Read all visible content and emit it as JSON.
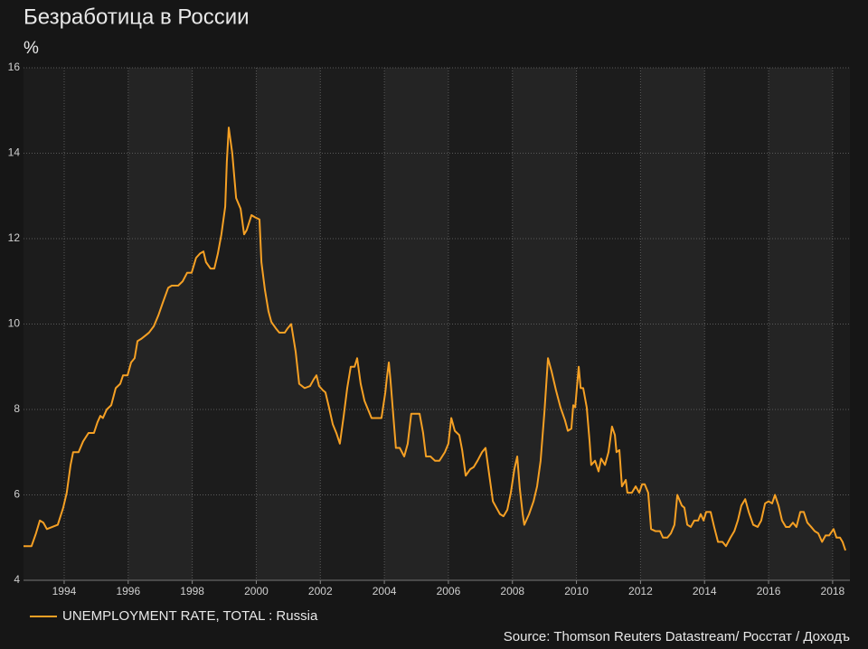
{
  "chart_data": {
    "type": "line",
    "title": "Безработица в России",
    "y_label": "%",
    "source": "Source: Thomson Reuters Datastream/ Росстат / Доходъ",
    "xlim": [
      1992.73,
      2018.54
    ],
    "ylim": [
      4,
      16
    ],
    "xticks": [
      1994,
      1996,
      1998,
      2000,
      2002,
      2004,
      2006,
      2008,
      2010,
      2012,
      2014,
      2016,
      2018
    ],
    "yticks": [
      4,
      6,
      8,
      10,
      12,
      14,
      16
    ],
    "grid": true,
    "legend": "bottom-left",
    "x": [
      1992.73,
      1992.98,
      1993.12,
      1993.24,
      1993.35,
      1993.46,
      1993.63,
      1993.8,
      1993.97,
      1994.08,
      1994.2,
      1994.28,
      1994.45,
      1994.59,
      1994.76,
      1994.93,
      1995.04,
      1995.13,
      1995.21,
      1995.33,
      1995.47,
      1995.61,
      1995.75,
      1995.84,
      1995.98,
      1996.09,
      1996.2,
      1996.29,
      1996.4,
      1996.57,
      1996.65,
      1996.8,
      1996.94,
      1997.08,
      1997.25,
      1997.36,
      1997.56,
      1997.7,
      1997.84,
      1997.98,
      1998.12,
      1998.24,
      1998.35,
      1998.43,
      1998.57,
      1998.69,
      1998.8,
      1998.91,
      1999.03,
      1999.08,
      1999.11,
      1999.14,
      1999.25,
      1999.37,
      1999.51,
      1999.62,
      1999.7,
      1999.85,
      1999.96,
      2000.1,
      2000.16,
      2000.27,
      2000.38,
      2000.47,
      2000.61,
      2000.72,
      2000.89,
      2000.98,
      2001.09,
      2001.23,
      2001.34,
      2001.51,
      2001.68,
      2001.79,
      2001.88,
      2001.96,
      2002.08,
      2002.16,
      2002.27,
      2002.39,
      2002.5,
      2002.61,
      2002.73,
      2002.84,
      2002.95,
      2003.07,
      2003.15,
      2003.26,
      2003.38,
      2003.49,
      2003.6,
      2003.77,
      2003.91,
      2004.03,
      2004.08,
      2004.14,
      2004.19,
      2004.28,
      2004.36,
      2004.48,
      2004.62,
      2004.73,
      2004.84,
      2005.1,
      2005.21,
      2005.3,
      2005.44,
      2005.58,
      2005.72,
      2005.89,
      2006.0,
      2006.09,
      2006.2,
      2006.34,
      2006.43,
      2006.54,
      2006.68,
      2006.79,
      2006.91,
      2007.05,
      2007.16,
      2007.27,
      2007.39,
      2007.5,
      2007.61,
      2007.72,
      2007.84,
      2007.95,
      2008.06,
      2008.15,
      2008.23,
      2008.32,
      2008.37,
      2008.52,
      2008.66,
      2008.77,
      2008.88,
      2009.0,
      2009.11,
      2009.22,
      2009.36,
      2009.5,
      2009.64,
      2009.73,
      2009.84,
      2009.9,
      2009.96,
      2010.07,
      2010.13,
      2010.21,
      2010.32,
      2010.41,
      2010.46,
      2010.58,
      2010.69,
      2010.77,
      2010.89,
      2011.0,
      2011.11,
      2011.2,
      2011.25,
      2011.34,
      2011.42,
      2011.54,
      2011.59,
      2011.73,
      2011.85,
      2011.96,
      2012.05,
      2012.13,
      2012.24,
      2012.33,
      2012.47,
      2012.61,
      2012.7,
      2012.84,
      2012.95,
      2013.06,
      2013.15,
      2013.29,
      2013.37,
      2013.46,
      2013.57,
      2013.68,
      2013.8,
      2013.88,
      2013.97,
      2014.05,
      2014.19,
      2014.3,
      2014.42,
      2014.56,
      2014.67,
      2014.81,
      2014.93,
      2015.04,
      2015.15,
      2015.27,
      2015.38,
      2015.52,
      2015.66,
      2015.77,
      2015.89,
      2016.0,
      2016.11,
      2016.2,
      2016.31,
      2016.42,
      2016.54,
      2016.65,
      2016.76,
      2016.87,
      2016.99,
      2017.1,
      2017.21,
      2017.33,
      2017.44,
      2017.55,
      2017.67,
      2017.78,
      2017.89,
      2018.03,
      2018.12,
      2018.23,
      2018.31,
      2018.4
    ],
    "series": [
      {
        "name": "UNEMPLOYMENT RATE, TOTAL : Russia",
        "color": "#f5a024",
        "values": [
          4.8,
          4.8,
          5.1,
          5.4,
          5.35,
          5.2,
          5.25,
          5.3,
          5.7,
          6.05,
          6.7,
          7.0,
          7.0,
          7.25,
          7.45,
          7.45,
          7.7,
          7.85,
          7.8,
          8.0,
          8.1,
          8.5,
          8.6,
          8.8,
          8.8,
          9.1,
          9.2,
          9.6,
          9.65,
          9.75,
          9.8,
          9.95,
          10.2,
          10.5,
          10.85,
          10.9,
          10.9,
          11.0,
          11.2,
          11.2,
          11.55,
          11.65,
          11.7,
          11.45,
          11.3,
          11.3,
          11.65,
          12.1,
          12.75,
          13.8,
          14.2,
          14.6,
          14.0,
          12.95,
          12.7,
          12.1,
          12.2,
          12.55,
          12.5,
          12.45,
          11.45,
          10.8,
          10.3,
          10.05,
          9.9,
          9.8,
          9.8,
          9.9,
          10.0,
          9.35,
          8.6,
          8.5,
          8.55,
          8.7,
          8.8,
          8.55,
          8.45,
          8.4,
          8.05,
          7.65,
          7.45,
          7.2,
          7.85,
          8.5,
          9.0,
          9.0,
          9.2,
          8.6,
          8.2,
          8.0,
          7.8,
          7.8,
          7.8,
          8.4,
          8.75,
          9.1,
          8.7,
          7.85,
          7.1,
          7.1,
          6.9,
          7.2,
          7.9,
          7.9,
          7.45,
          6.9,
          6.9,
          6.8,
          6.8,
          7.0,
          7.2,
          7.8,
          7.5,
          7.4,
          7.05,
          6.45,
          6.6,
          6.65,
          6.8,
          7.0,
          7.1,
          6.5,
          5.85,
          5.7,
          5.55,
          5.5,
          5.65,
          6.05,
          6.6,
          6.9,
          6.15,
          5.55,
          5.3,
          5.55,
          5.85,
          6.2,
          6.8,
          7.95,
          9.2,
          8.9,
          8.45,
          8.05,
          7.75,
          7.5,
          7.55,
          8.1,
          8.05,
          9.0,
          8.5,
          8.5,
          8.05,
          7.25,
          6.7,
          6.8,
          6.55,
          6.85,
          6.7,
          7.0,
          7.6,
          7.4,
          7.0,
          7.05,
          6.2,
          6.35,
          6.05,
          6.05,
          6.2,
          6.05,
          6.25,
          6.25,
          6.05,
          5.2,
          5.15,
          5.15,
          5.0,
          5.0,
          5.1,
          5.3,
          6.0,
          5.75,
          5.7,
          5.3,
          5.25,
          5.4,
          5.4,
          5.55,
          5.4,
          5.6,
          5.6,
          5.25,
          4.9,
          4.9,
          4.8,
          5.0,
          5.15,
          5.4,
          5.75,
          5.9,
          5.6,
          5.3,
          5.25,
          5.4,
          5.8,
          5.85,
          5.8,
          6.0,
          5.75,
          5.4,
          5.25,
          5.25,
          5.35,
          5.25,
          5.6,
          5.6,
          5.35,
          5.25,
          5.15,
          5.1,
          4.9,
          5.05,
          5.05,
          5.2,
          5.0,
          5.0,
          4.9,
          4.7
        ]
      }
    ]
  }
}
